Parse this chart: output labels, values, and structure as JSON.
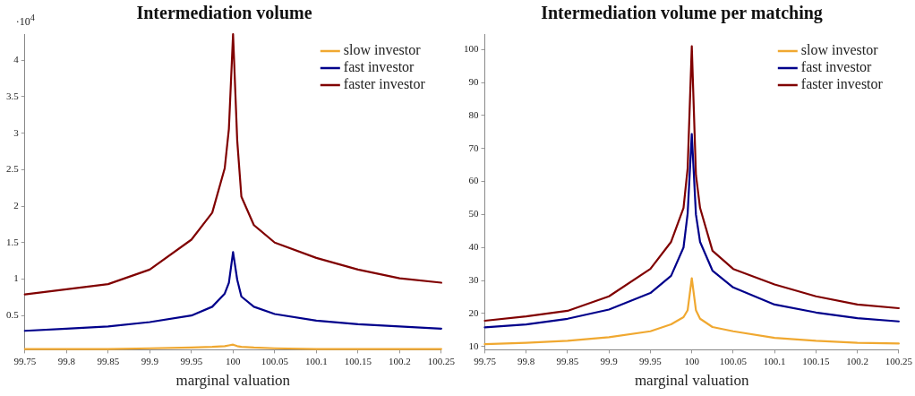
{
  "chart_data": [
    {
      "type": "line",
      "title": "Intermediation volume",
      "xlabel": "marginal valuation",
      "annotations": [
        "·10$^{4}$"
      ],
      "legend": "top right",
      "grid": false,
      "marker": "none",
      "line_style": "solid",
      "xlim": [
        99.75,
        100.25
      ],
      "xticks": [
        99.75,
        99.8,
        99.85,
        99.9,
        99.95,
        100,
        100.05,
        100.1,
        100.15,
        100.2,
        100.25
      ],
      "ylim": [
        0.03,
        4.36
      ],
      "yticks": [
        0.5,
        1,
        1.5,
        2,
        2.5,
        3,
        3.5,
        4
      ],
      "x": [
        99.75,
        99.8,
        99.85,
        99.9,
        99.95,
        99.975,
        99.99,
        99.995,
        100,
        100.005,
        100.01,
        100.025,
        100.05,
        100.1,
        100.15,
        100.2,
        100.25
      ],
      "series": [
        {
          "name": "slow investor",
          "color": "#f0a830",
          "values": [
            0.04,
            0.04,
            0.04,
            0.05,
            0.06,
            0.07,
            0.08,
            0.09,
            0.1,
            0.08,
            0.07,
            0.06,
            0.05,
            0.04,
            0.04,
            0.04,
            0.04
          ]
        },
        {
          "name": "fast investor",
          "color": "#00008b",
          "values": [
            0.29,
            0.32,
            0.35,
            0.41,
            0.5,
            0.62,
            0.8,
            0.95,
            1.37,
            0.99,
            0.76,
            0.62,
            0.52,
            0.43,
            0.38,
            0.35,
            0.32
          ]
        },
        {
          "name": "faster investor",
          "color": "#800000",
          "values": [
            0.79,
            0.86,
            0.93,
            1.13,
            1.54,
            1.91,
            2.52,
            3.06,
            4.36,
            2.9,
            2.13,
            1.74,
            1.5,
            1.29,
            1.13,
            1.01,
            0.95
          ]
        }
      ]
    },
    {
      "type": "line",
      "title": "Intermediation volume per matching",
      "xlabel": "marginal valuation",
      "legend": "top right",
      "grid": false,
      "marker": "none",
      "line_style": "solid",
      "xlim": [
        99.75,
        100.25
      ],
      "xticks": [
        99.75,
        99.8,
        99.85,
        99.9,
        99.95,
        100,
        100.05,
        100.1,
        100.15,
        100.2,
        100.25
      ],
      "ylim": [
        9,
        104.7
      ],
      "yticks": [
        10,
        20,
        30,
        40,
        50,
        60,
        70,
        80,
        90,
        100
      ],
      "x": [
        99.75,
        99.8,
        99.85,
        99.9,
        99.95,
        99.975,
        99.99,
        99.995,
        100,
        100.005,
        100.01,
        100.025,
        100.05,
        100.1,
        100.15,
        100.2,
        100.25
      ],
      "series": [
        {
          "name": "slow investor",
          "color": "#f0a830",
          "values": [
            10.7,
            11.1,
            11.7,
            12.8,
            14.6,
            16.7,
            18.9,
            21,
            30.7,
            21,
            18.4,
            15.9,
            14.6,
            12.6,
            11.7,
            11.1,
            10.9
          ]
        },
        {
          "name": "fast investor",
          "color": "#00008b",
          "values": [
            15.8,
            16.7,
            18.4,
            21.2,
            26.2,
            31.4,
            40,
            50.3,
            74.4,
            50,
            41.7,
            33,
            27.9,
            22.7,
            20.3,
            18.6,
            17.6
          ]
        },
        {
          "name": "faster investor",
          "color": "#800000",
          "values": [
            17.8,
            19.1,
            20.8,
            25.2,
            33.5,
            41.7,
            52,
            64,
            101,
            62,
            52,
            39,
            33.5,
            28.8,
            25.2,
            22.7,
            21.6
          ]
        }
      ]
    }
  ]
}
